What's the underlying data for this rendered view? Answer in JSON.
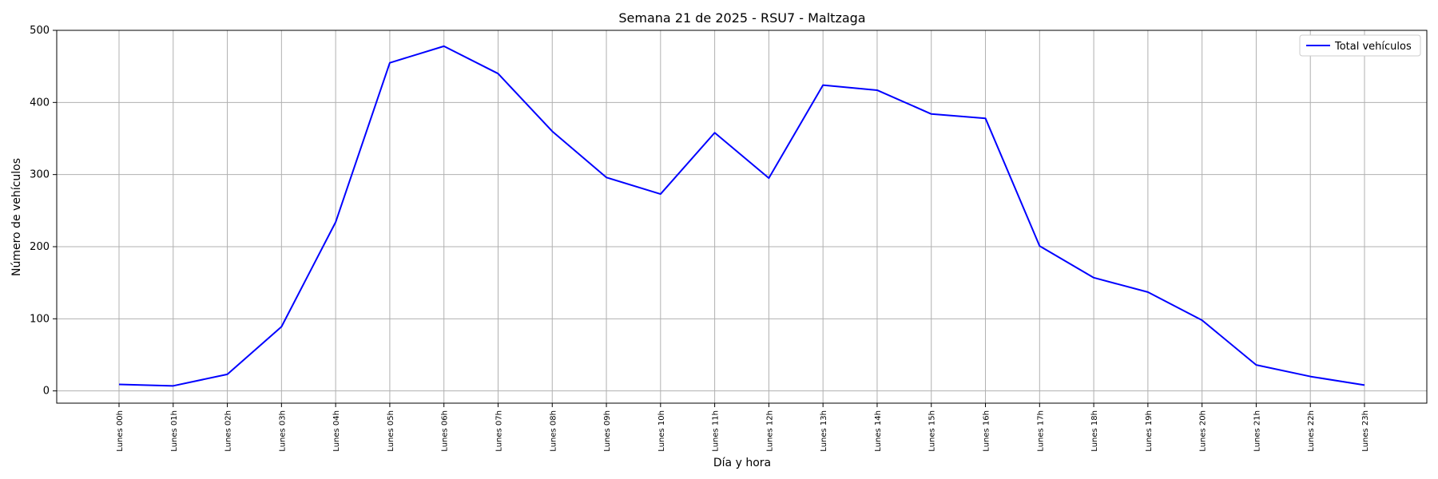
{
  "chart_data": {
    "type": "line",
    "title": "Semana 21 de 2025 - RSU7 - Maltzaga",
    "xlabel": "Día y hora",
    "ylabel": "Número de vehículos",
    "categories": [
      "Lunes 00h",
      "Lunes 01h",
      "Lunes 02h",
      "Lunes 03h",
      "Lunes 04h",
      "Lunes 05h",
      "Lunes 06h",
      "Lunes 07h",
      "Lunes 08h",
      "Lunes 09h",
      "Lunes 10h",
      "Lunes 11h",
      "Lunes 12h",
      "Lunes 13h",
      "Lunes 14h",
      "Lunes 15h",
      "Lunes 16h",
      "Lunes 17h",
      "Lunes 18h",
      "Lunes 19h",
      "Lunes 20h",
      "Lunes 21h",
      "Lunes 22h",
      "Lunes 23h"
    ],
    "series": [
      {
        "name": "Total vehículos",
        "color": "#0000ff",
        "values": [
          9,
          7,
          23,
          89,
          234,
          455,
          478,
          440,
          360,
          296,
          273,
          358,
          295,
          424,
          417,
          384,
          378,
          201,
          157,
          137,
          98,
          36,
          20,
          8
        ]
      }
    ],
    "ylim": [
      -17,
      500
    ],
    "yticks": [
      0,
      100,
      200,
      300,
      400,
      500
    ],
    "grid": true,
    "legend_position": "top-right"
  }
}
